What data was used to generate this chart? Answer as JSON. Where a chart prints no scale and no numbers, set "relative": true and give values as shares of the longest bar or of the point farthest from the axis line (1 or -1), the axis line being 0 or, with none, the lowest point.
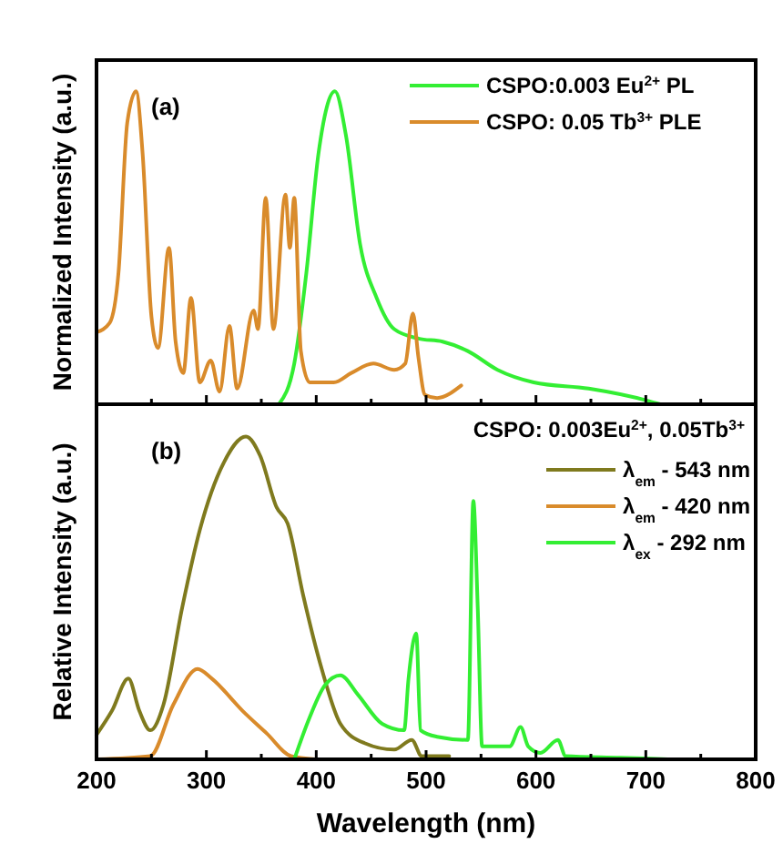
{
  "chart_data": [
    {
      "type": "line",
      "relative": true,
      "ylabel": "Normalized Intensity (a.u.)",
      "annotations": [
        "(a)"
      ],
      "legend": "top right",
      "tick_labels": false,
      "xlim": [
        200,
        800
      ],
      "xticks": [
        {
          "value": 200,
          "label": null
        },
        {
          "value": 250,
          "label": null
        },
        {
          "value": 300,
          "label": null
        },
        {
          "value": 350,
          "label": null
        },
        {
          "value": 400,
          "label": null
        },
        {
          "value": 450,
          "label": null
        },
        {
          "value": 500,
          "label": null
        },
        {
          "value": 550,
          "label": null
        },
        {
          "value": 600,
          "label": null
        },
        {
          "value": 650,
          "label": null
        },
        {
          "value": 700,
          "label": null
        },
        {
          "value": 750,
          "label": null
        },
        {
          "value": 800,
          "label": null
        }
      ],
      "series": [
        {
          "name": "CSPO:0.003 Eu$^{2+}$ PL",
          "color": "#33ee33",
          "x": [
            366,
            380,
            391,
            402,
            417,
            427,
            440,
            455,
            471,
            493,
            515,
            538,
            565,
            598,
            648,
            703,
            713
          ],
          "values": [
            0,
            0.13,
            0.42,
            0.8,
            1.0,
            0.86,
            0.51,
            0.34,
            0.24,
            0.21,
            0.2,
            0.17,
            0.11,
            0.07,
            0.05,
            0.01,
            0
          ]
        },
        {
          "name": "CSPO: 0.05 Tb$^{3+}$  PLE",
          "color": "#d98b2b",
          "x": [
            200,
            212,
            220,
            228,
            236,
            242,
            250,
            256,
            266,
            272,
            279,
            286,
            294,
            304,
            312,
            321,
            328,
            343,
            347,
            354,
            361,
            372,
            376,
            380,
            386,
            394,
            416,
            432,
            452,
            471,
            481,
            488,
            493,
            499,
            510,
            532
          ],
          "values": [
            0.23,
            0.26,
            0.42,
            0.9,
            1.0,
            0.8,
            0.28,
            0.18,
            0.5,
            0.2,
            0.1,
            0.34,
            0.07,
            0.14,
            0.04,
            0.25,
            0.05,
            0.3,
            0.24,
            0.66,
            0.24,
            0.67,
            0.5,
            0.66,
            0.17,
            0.07,
            0.07,
            0.1,
            0.13,
            0.11,
            0.13,
            0.29,
            0.15,
            0.03,
            0.02,
            0.06
          ]
        }
      ]
    },
    {
      "type": "line",
      "relative": true,
      "ylabel": "Relative Intensity (a.u.)",
      "xlabel": "Wavelength (nm)",
      "annotations": [
        "(b)"
      ],
      "legend": "top right",
      "legend_title": "CSPO: 0.003Eu$^{2+}$, 0.05Tb$^{3+}$",
      "tick_labels": "x",
      "xlim": [
        200,
        800
      ],
      "xticks": [
        200,
        {
          "value": 250,
          "label": null
        },
        300,
        {
          "value": 350,
          "label": null
        },
        400,
        {
          "value": 450,
          "label": null
        },
        500,
        {
          "value": 550,
          "label": null
        },
        600,
        {
          "value": 650,
          "label": null
        },
        700,
        {
          "value": 750,
          "label": null
        },
        800
      ],
      "series": [
        {
          "name": "λ$_{em}$ - 543 nm",
          "color": "#7f7a1e",
          "x": [
            200,
            214,
            229,
            239,
            249,
            261,
            278,
            294,
            316,
            336,
            349,
            364,
            374,
            388,
            405,
            422,
            444,
            471,
            487,
            496,
            521
          ],
          "values": [
            0.076,
            0.15,
            0.25,
            0.15,
            0.09,
            0.17,
            0.47,
            0.71,
            0.92,
            1.0,
            0.94,
            0.78,
            0.73,
            0.51,
            0.28,
            0.11,
            0.05,
            0.03,
            0.06,
            0.01,
            0.01
          ]
        },
        {
          "name": "λ$_{em}$ - 420 nm",
          "color": "#d98b2b",
          "x": [
            200,
            249,
            270,
            292,
            305,
            333,
            355,
            377,
            399
          ],
          "values": [
            0,
            0.01,
            0.17,
            0.28,
            0.25,
            0.15,
            0.08,
            0.01,
            0
          ]
        },
        {
          "name": "λ$_{ex}$ -  292 nm",
          "color": "#33ee33",
          "x": [
            380,
            394,
            408,
            422,
            438,
            460,
            480,
            484,
            491,
            495,
            510,
            538,
            543,
            547,
            551,
            576,
            586,
            593,
            604,
            620,
            627,
            677,
            720
          ],
          "values": [
            0,
            0.13,
            0.23,
            0.26,
            0.2,
            0.11,
            0.09,
            0.25,
            0.39,
            0.09,
            0.07,
            0.06,
            0.8,
            0.47,
            0.04,
            0.04,
            0.1,
            0.04,
            0.02,
            0.06,
            0.01,
            0.005,
            0
          ]
        }
      ]
    }
  ]
}
